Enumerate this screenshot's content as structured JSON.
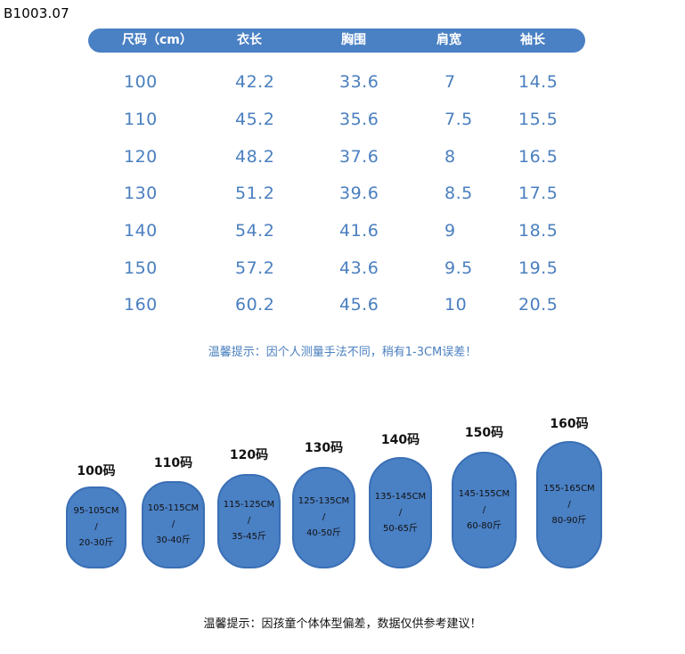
{
  "product_code": "B1003.07",
  "table": {
    "headers": [
      "尺码（cm）",
      "衣长",
      "胸围",
      "肩宽",
      "袖长"
    ],
    "rows": [
      [
        "100",
        "42.2",
        "33.6",
        "7",
        "14.5"
      ],
      [
        "110",
        "45.2",
        "35.6",
        "7.5",
        "15.5"
      ],
      [
        "120",
        "48.2",
        "37.6",
        "8",
        "16.5"
      ],
      [
        "130",
        "51.2",
        "39.6",
        "8.5",
        "17.5"
      ],
      [
        "140",
        "54.2",
        "41.6",
        "9",
        "18.5"
      ],
      [
        "150",
        "57.2",
        "43.6",
        "9.5",
        "19.5"
      ],
      [
        "160",
        "60.2",
        "45.6",
        "10",
        "20.5"
      ]
    ]
  },
  "note_top": "温馨提示：因个人测量手法不同，稍有1-3CM误差！",
  "sizes": [
    {
      "label": "100码",
      "height": "95-105CM",
      "sep": "/",
      "weight": "20-30斤"
    },
    {
      "label": "110码",
      "height": "105-115CM",
      "sep": "/",
      "weight": "30-40斤"
    },
    {
      "label": "120码",
      "height": "115-125CM",
      "sep": "/",
      "weight": "35-45斤"
    },
    {
      "label": "130码",
      "height": "125-135CM",
      "sep": "/",
      "weight": "40-50斤"
    },
    {
      "label": "140码",
      "height": "135-145CM",
      "sep": "/",
      "weight": "50-65斤"
    },
    {
      "label": "150码",
      "height": "145-155CM",
      "sep": "/",
      "weight": "60-80斤"
    },
    {
      "label": "160码",
      "height": "155-165CM",
      "sep": "/",
      "weight": "80-90斤"
    }
  ],
  "note_bottom": "温馨提示：因孩童个体体型偏差，数据仅供参考建议！",
  "colors": {
    "accent": "#4a80c4",
    "text_blue": "#4a7fbf"
  }
}
